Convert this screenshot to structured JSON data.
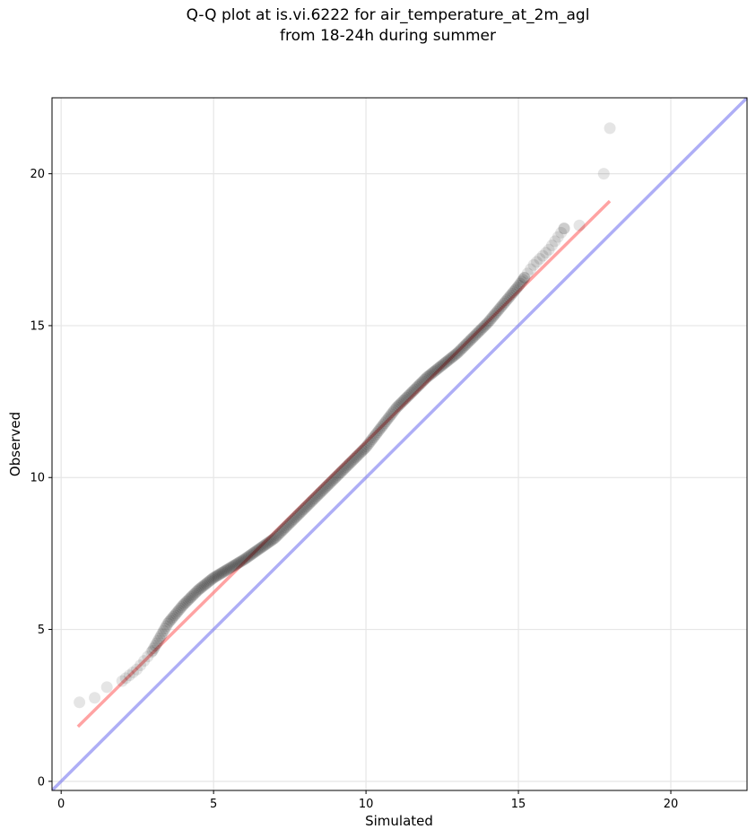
{
  "chart_data": {
    "type": "scatter",
    "title": [
      "Q-Q plot at is.vi.6222 for air_temperature_at_2m_agl",
      "from 18-24h during summer"
    ],
    "xlabel": "Simulated",
    "ylabel": "Observed",
    "xlim": [
      -0.3,
      22.5
    ],
    "ylim": [
      -0.3,
      22.5
    ],
    "xticks": [
      0,
      5,
      10,
      15,
      20
    ],
    "yticks": [
      0,
      5,
      10,
      15,
      20
    ],
    "grid": true,
    "colors": {
      "points": "#000000",
      "fit_line": "#ff6666",
      "identity_line": "#6b6bef",
      "grid": "#e6e6e6"
    },
    "series": [
      {
        "type": "scatter",
        "anchors": [
          [
            0.6,
            2.6
          ],
          [
            1.1,
            2.75
          ],
          [
            1.5,
            3.1
          ],
          [
            2.0,
            3.3
          ],
          [
            2.5,
            3.7
          ],
          [
            3.0,
            4.3
          ],
          [
            3.5,
            5.2
          ],
          [
            4.0,
            5.8
          ],
          [
            4.5,
            6.3
          ],
          [
            5.0,
            6.7
          ],
          [
            5.5,
            7.0
          ],
          [
            6.0,
            7.3
          ],
          [
            7.0,
            8.0
          ],
          [
            8.0,
            9.0
          ],
          [
            9.0,
            10.0
          ],
          [
            10.0,
            11.0
          ],
          [
            11.0,
            12.3
          ],
          [
            12.0,
            13.3
          ],
          [
            13.0,
            14.1
          ],
          [
            14.0,
            15.1
          ],
          [
            15.0,
            16.3
          ],
          [
            15.5,
            17.0
          ],
          [
            16.0,
            17.5
          ],
          [
            16.5,
            18.2
          ],
          [
            17.0,
            18.3
          ],
          [
            17.8,
            20.0
          ],
          [
            18.0,
            21.5
          ]
        ]
      },
      {
        "type": "line",
        "x": [
          0.55,
          18.0
        ],
        "y": [
          1.8,
          19.1
        ]
      },
      {
        "type": "line",
        "x": [
          -0.3,
          22.5
        ],
        "y": [
          -0.3,
          22.5
        ]
      }
    ]
  }
}
